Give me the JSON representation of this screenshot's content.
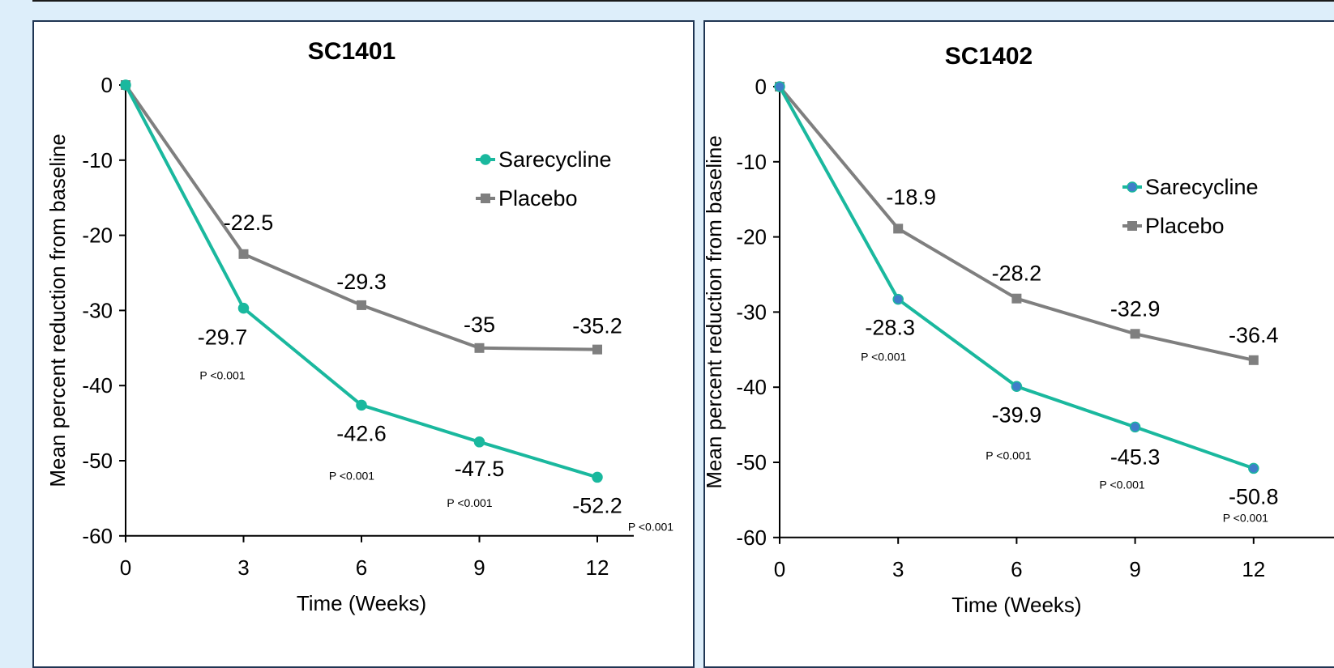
{
  "chart_data": [
    {
      "type": "line",
      "title": "SC1401",
      "xlabel": "Time (Weeks)",
      "ylabel": "Mean percent reduction from baseline",
      "x": [
        0,
        3,
        6,
        9,
        12
      ],
      "xticks": [
        "0",
        "3",
        "6",
        "9",
        "12"
      ],
      "ylim": [
        -60,
        0
      ],
      "yticks": [
        "0",
        "-10",
        "-20",
        "-30",
        "-40",
        "-50",
        "-60"
      ],
      "legend_position": "top-right",
      "series": [
        {
          "name": "Sarecycline",
          "color": "#1ab89e",
          "marker": "circle",
          "values": [
            0,
            -29.7,
            -42.6,
            -47.5,
            -52.2
          ],
          "labels": [
            "",
            "-29.7",
            "-42.6",
            "-47.5",
            "-52.2"
          ]
        },
        {
          "name": "Placebo",
          "color": "#7f7f7f",
          "marker": "square",
          "values": [
            0,
            -22.5,
            -29.3,
            -35,
            -35.2
          ],
          "labels": [
            "",
            "-22.5",
            "-29.3",
            "-35",
            "-35.2"
          ]
        }
      ],
      "p_value_labels": [
        "P <0.001",
        "P <0.001",
        "P <0.001",
        "P <0.001"
      ]
    },
    {
      "type": "line",
      "title": "SC1402",
      "xlabel": "Time (Weeks)",
      "ylabel": "Mean percent reduction from baseline",
      "x": [
        0,
        3,
        6,
        9,
        12
      ],
      "xticks": [
        "0",
        "3",
        "6",
        "9",
        "12"
      ],
      "ylim": [
        -60,
        0
      ],
      "yticks": [
        "0",
        "-10",
        "-20",
        "-30",
        "-40",
        "-50",
        "-60"
      ],
      "legend_position": "top-right",
      "series": [
        {
          "name": "Sarecycline",
          "color": "#1ab89e",
          "marker_color": "#3f7ec9",
          "marker": "circle",
          "values": [
            0,
            -28.3,
            -39.9,
            -45.3,
            -50.8
          ],
          "labels": [
            "",
            "-28.3",
            "-39.9",
            "-45.3",
            "-50.8"
          ]
        },
        {
          "name": "Placebo",
          "color": "#7f7f7f",
          "marker": "square",
          "values": [
            0,
            -18.9,
            -28.2,
            -32.9,
            -36.4
          ],
          "labels": [
            "",
            "-18.9",
            "-28.2",
            "-32.9",
            "-36.4"
          ]
        }
      ],
      "p_value_labels": [
        "P <0.001",
        "P <0.001",
        "P <0.001",
        "P <0.001"
      ]
    }
  ]
}
